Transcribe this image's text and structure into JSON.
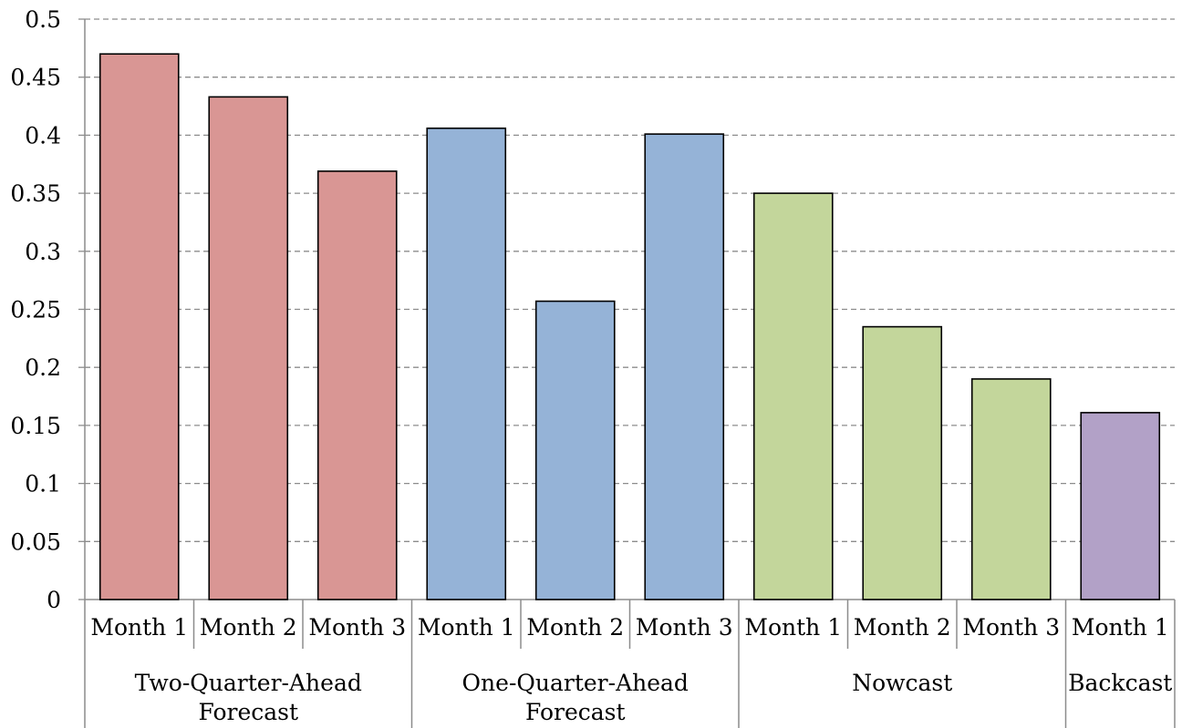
{
  "chart_data": {
    "type": "bar",
    "title": "",
    "xlabel": "",
    "ylabel": "",
    "ylim": [
      0,
      0.5
    ],
    "y_ticks": [
      "0",
      "0.05",
      "0.1",
      "0.15",
      "0.2",
      "0.25",
      "0.3",
      "0.35",
      "0.4",
      "0.45",
      "0.5"
    ],
    "grid": true,
    "legend": "none",
    "groups": [
      {
        "label": "Two-Quarter-Ahead Forecast",
        "label_lines": [
          "Two-Quarter-Ahead",
          "Forecast"
        ],
        "color": "#d99694",
        "categories": [
          "Month 1",
          "Month 2",
          "Month 3"
        ],
        "values": [
          0.47,
          0.433,
          0.369
        ]
      },
      {
        "label": "One-Quarter-Ahead Forecast",
        "label_lines": [
          "One-Quarter-Ahead",
          "Forecast"
        ],
        "color": "#95b3d7",
        "categories": [
          "Month 1",
          "Month 2",
          "Month 3"
        ],
        "values": [
          0.406,
          0.257,
          0.401
        ]
      },
      {
        "label": "Nowcast",
        "label_lines": [
          "Nowcast"
        ],
        "color": "#c3d69b",
        "categories": [
          "Month 1",
          "Month 2",
          "Month 3"
        ],
        "values": [
          0.35,
          0.235,
          0.19
        ]
      },
      {
        "label": "Backcast",
        "label_lines": [
          "Backcast"
        ],
        "color": "#b2a1c7",
        "categories": [
          "Month 1"
        ],
        "values": [
          0.161
        ]
      }
    ]
  }
}
